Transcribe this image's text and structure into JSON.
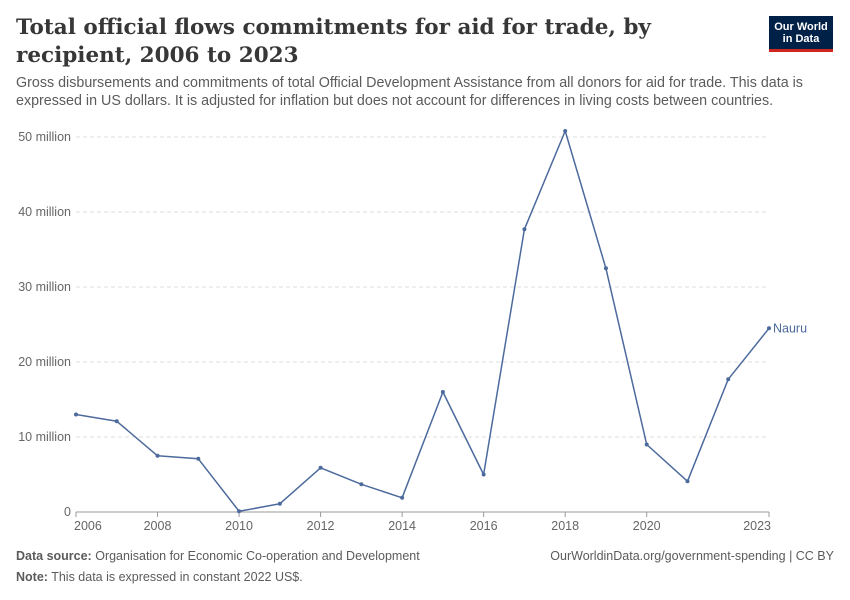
{
  "header": {
    "title": "Total official flows commitments for aid for trade, by recipient, 2006 to 2023",
    "subtitle": "Gross disbursements and commitments of total Official Development Assistance from all donors for aid for trade. This data is expressed in US dollars. It is adjusted for inflation but does not account for differences in living costs between countries.",
    "logo_line1": "Our World",
    "logo_line2": "in Data"
  },
  "footer": {
    "source_label": "Data source:",
    "source_text": "Organisation for Economic Co-operation and Development",
    "note_label": "Note:",
    "note_text": "This data is expressed in constant 2022 US$.",
    "url": "OurWorldinData.org/government-spending | CC BY"
  },
  "colors": {
    "series": "#4c6a9c",
    "grid": "#dddddd",
    "axis": "#999999"
  },
  "chart_data": {
    "type": "line",
    "title": "Total official flows commitments for aid for trade, by recipient, 2006 to 2023",
    "xlabel": "",
    "ylabel": "",
    "x": [
      2006,
      2007,
      2008,
      2009,
      2010,
      2011,
      2012,
      2013,
      2014,
      2015,
      2016,
      2017,
      2018,
      2019,
      2020,
      2021,
      2022,
      2023
    ],
    "series": [
      {
        "name": "Nauru",
        "values": [
          13.0,
          12.1,
          7.5,
          7.1,
          0.1,
          1.1,
          5.9,
          3.7,
          1.9,
          16.0,
          5.0,
          37.7,
          50.8,
          32.5,
          9.0,
          4.1,
          17.7,
          24.5
        ]
      }
    ],
    "xlim": [
      2006,
      2023
    ],
    "ylim": [
      0,
      50
    ],
    "x_ticks": [
      2006,
      2008,
      2010,
      2012,
      2014,
      2016,
      2018,
      2020,
      2023
    ],
    "y_ticks": [
      0,
      10,
      20,
      30,
      40,
      50
    ],
    "y_tick_labels": [
      "0",
      "10 million",
      "20 million",
      "30 million",
      "40 million",
      "50 million"
    ],
    "grid": true,
    "legend": "line-end label"
  }
}
